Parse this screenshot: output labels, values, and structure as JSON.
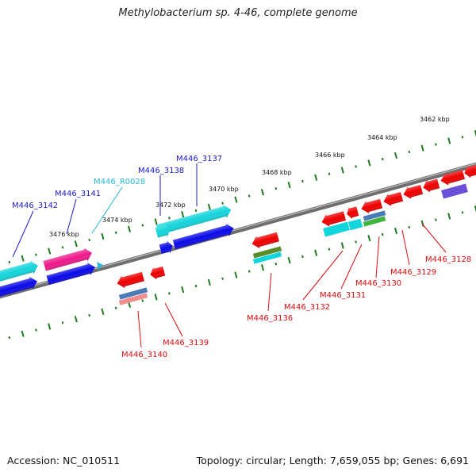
{
  "title": "Methylobacterium sp. 4-46, complete genome",
  "footer": {
    "accession": "Accession: NC_010511",
    "topology": "Topology: circular; Length: 7,659,055 bp; Genes: 6,691"
  },
  "colors": {
    "backbone": "#7a7a7a",
    "tick": "#1f7a1f",
    "label_blue": "#1b1bc8",
    "label_cyan": "#2ab8d8",
    "label_red": "#d81010",
    "gene_red": "#ee0000",
    "gene_blue": "#0a0ae8",
    "gene_cyan": "#14d4dc",
    "gene_magenta": "#ee1a8c",
    "gene_purple": "#6a4fd8",
    "gene_green": "#3fb43f",
    "gene_olive": "#5a8c2a",
    "gene_steel": "#4a7ab8",
    "gene_pink": "#f08c8c"
  },
  "scale": {
    "labels": [
      "3462 kbp",
      "3464 kbp",
      "3466 kbp",
      "3468 kbp",
      "3470 kbp",
      "3472 kbp",
      "3474 kbp",
      "3476 kbp"
    ]
  },
  "genes": {
    "forward": [
      "M446_3142",
      "M446_3141",
      "M446_R0028",
      "M446_3138",
      "M446_3137"
    ],
    "reverse": [
      "M446_3140",
      "M446_3139",
      "M446_3136",
      "M446_3132",
      "M446_3131",
      "M446_3130",
      "M446_3129",
      "M446_3128"
    ]
  }
}
